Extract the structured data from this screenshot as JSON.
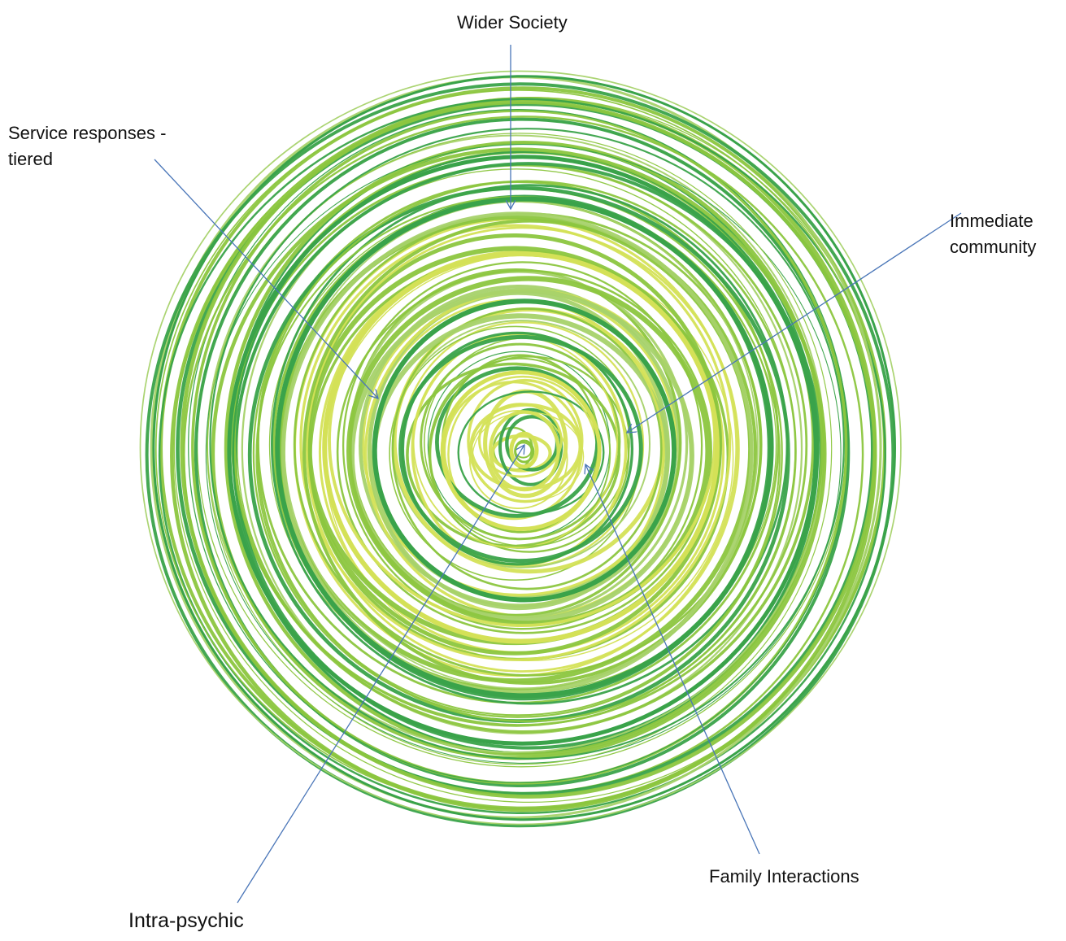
{
  "diagram": {
    "labels": {
      "wider_society": "Wider Society",
      "service_responses_line1": "Service responses -",
      "service_responses_line2": "tiered",
      "immediate_community_line1": "Immediate",
      "immediate_community_line2": "community",
      "family_interactions": "Family Interactions",
      "intra_psychic": "Intra-psychic"
    },
    "colors": {
      "dark_green": "#3aa34a",
      "mid_green": "#8cc63f",
      "light_green": "#a7d26a",
      "yellow_green": "#d4e157",
      "arrow_blue": "#4a76b8"
    }
  }
}
